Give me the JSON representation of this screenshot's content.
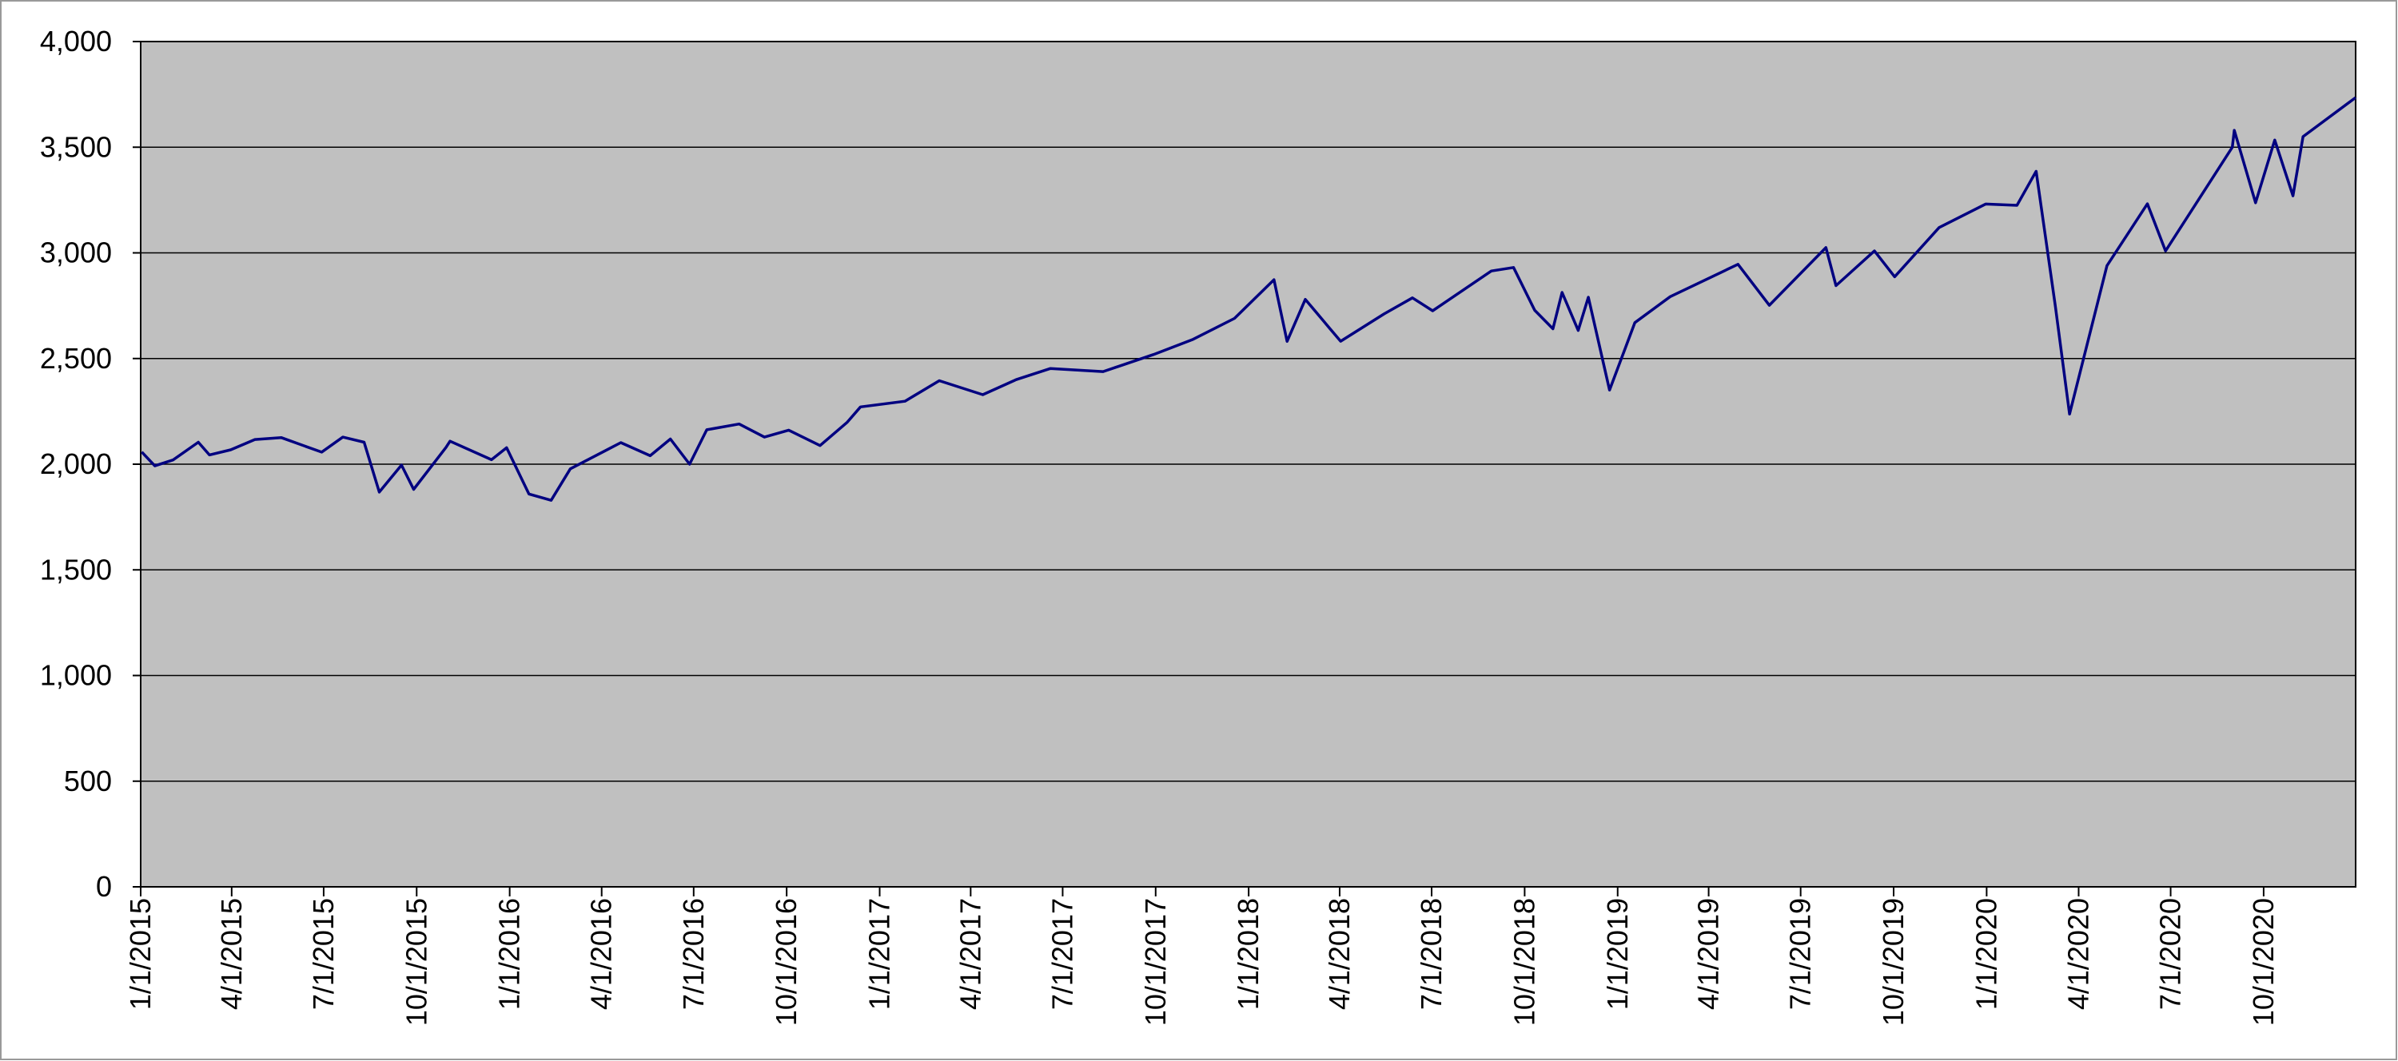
{
  "chart_data": {
    "type": "line",
    "color": "#000080",
    "background": "#c0c0c0",
    "grid": true,
    "x": [
      "1/2/2015",
      "1/15/2015",
      "2/2/2015",
      "2/27/2015",
      "3/10/2015",
      "3/31/2015",
      "4/24/2015",
      "5/20/2015",
      "6/29/2015",
      "7/20/2015",
      "8/10/2015",
      "8/25/2015",
      "9/16/2015",
      "9/28/2015",
      "10/30/2015",
      "11/3/2015",
      "12/14/2015",
      "12/29/2015",
      "1/20/2016",
      "2/11/2016",
      "3/1/2016",
      "4/20/2016",
      "5/19/2016",
      "6/8/2016",
      "6/27/2016",
      "7/14/2016",
      "8/15/2016",
      "9/9/2016",
      "10/3/2016",
      "11/3/2016",
      "11/30/2016",
      "12/13/2016",
      "1/26/2017",
      "3/1/2017",
      "4/13/2017",
      "5/16/2017",
      "6/19/2017",
      "8/10/2017",
      "9/29/2017",
      "11/7/2017",
      "12/18/2017",
      "1/26/2018",
      "2/8/2018",
      "2/26/2018",
      "3/22/2018",
      "4/2/2018",
      "5/15/2018",
      "6/12/2018",
      "7/2/2018",
      "8/29/2018",
      "9/20/2018",
      "10/11/2018",
      "10/29/2018",
      "11/7/2018",
      "11/23/2018",
      "12/3/2018",
      "12/24/2018",
      "1/18/2019",
      "2/22/2019",
      "4/30/2019",
      "5/31/2019",
      "7/26/2019",
      "8/5/2019",
      "9/12/2019",
      "10/2/2019",
      "11/15/2019",
      "12/31/2019",
      "1/31/2020",
      "2/19/2020",
      "3/9/2020",
      "3/23/2020",
      "4/29/2020",
      "6/8/2020",
      "6/26/2020",
      "8/31/2020",
      "9/2/2020",
      "9/23/2020",
      "10/12/2020",
      "10/30/2020",
      "11/9/2020",
      "12/31/2020"
    ],
    "values": [
      2058,
      1992,
      2020,
      2104,
      2044,
      2068,
      2117,
      2126,
      2057,
      2128,
      2104,
      1868,
      1996,
      1881,
      2079,
      2109,
      2021,
      2078,
      1859,
      1829,
      1978,
      2102,
      2040,
      2119,
      2000,
      2163,
      2190,
      2128,
      2161,
      2088,
      2199,
      2271,
      2298,
      2395,
      2329,
      2400,
      2453,
      2438,
      2519,
      2591,
      2690,
      2873,
      2581,
      2780,
      2644,
      2582,
      2711,
      2787,
      2726,
      2914,
      2931,
      2728,
      2641,
      2813,
      2633,
      2790,
      2351,
      2670,
      2793,
      2946,
      2752,
      3025,
      2845,
      3009,
      2887,
      3120,
      3231,
      3225,
      3386,
      2746,
      2237,
      2939,
      3232,
      3009,
      3500,
      3580,
      3237,
      3534,
      3270,
      3550,
      3735
    ],
    "xlim": [
      "1/1/2015",
      "12/31/2020"
    ],
    "xticks": [
      "1/1/2015",
      "4/1/2015",
      "7/1/2015",
      "10/1/2015",
      "1/1/2016",
      "4/1/2016",
      "7/1/2016",
      "10/1/2016",
      "1/1/2017",
      "4/1/2017",
      "7/1/2017",
      "10/1/2017",
      "1/1/2018",
      "4/1/2018",
      "7/1/2018",
      "10/1/2018",
      "1/1/2019",
      "4/1/2019",
      "7/1/2019",
      "10/1/2019",
      "1/1/2020",
      "4/1/2020",
      "7/1/2020",
      "10/1/2020"
    ],
    "ylim": [
      0,
      4000
    ],
    "yticks": [
      0,
      500,
      {
        "value": 1000,
        "label": "1,000"
      },
      {
        "value": 1500,
        "label": "1,500"
      },
      {
        "value": 2000,
        "label": "2,000"
      },
      {
        "value": 2500,
        "label": "2,500"
      },
      {
        "value": 3000,
        "label": "3,000"
      },
      {
        "value": 3500,
        "label": "3,500"
      },
      {
        "value": 4000,
        "label": "4,000"
      }
    ]
  }
}
